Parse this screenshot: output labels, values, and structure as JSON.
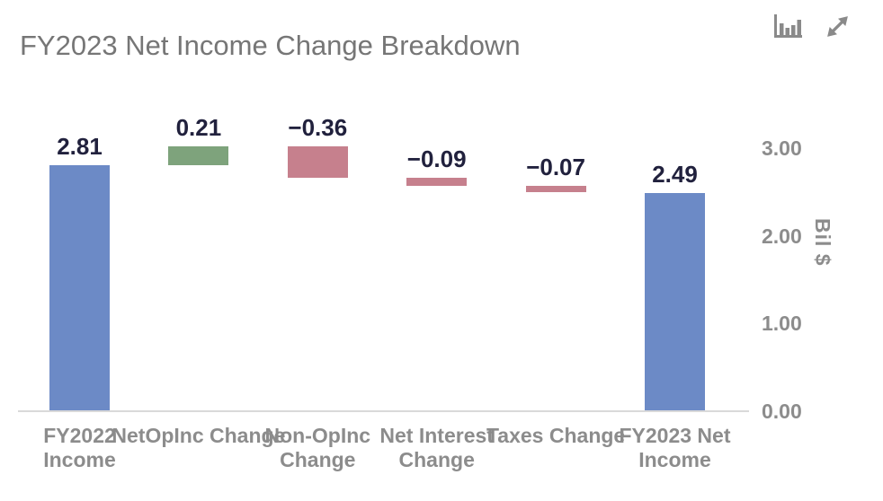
{
  "header": {
    "title": "FY2023 Net Income Change Breakdown"
  },
  "toolbar": {
    "chart_type_icon": "bar-chart-icon",
    "expand_icon": "expand-arrows-icon"
  },
  "chart_data": {
    "type": "waterfall",
    "title": "FY2023 Net Income Change Breakdown",
    "categories": [
      "FY2022 Income",
      "NetOpInc Change",
      "Non-OpInc Change",
      "Net Interest Change",
      "Taxes Change",
      "FY2023 Net Income"
    ],
    "category_display": [
      "FY2022\nIncome",
      "NetOpInc Change",
      "Non-OpInc\nChange",
      "Net Interest\nChange",
      "Taxes Change",
      "FY2023 Net\nIncome"
    ],
    "values": [
      2.81,
      0.21,
      -0.36,
      -0.09,
      -0.07,
      2.49
    ],
    "bar_kinds": [
      "total",
      "delta",
      "delta",
      "delta",
      "delta",
      "total"
    ],
    "data_labels": [
      "2.81",
      "0.21",
      "−0.36",
      "−0.09",
      "−0.07",
      "2.49"
    ],
    "ylabel": "Bil $",
    "yticks": [
      {
        "value": 0,
        "label": "0.00"
      },
      {
        "value": 1,
        "label": "1.00"
      },
      {
        "value": 2,
        "label": "2.00"
      },
      {
        "value": 3,
        "label": "3.00"
      }
    ],
    "ylim": [
      0,
      3.3
    ],
    "grid": "off",
    "legend": "off",
    "colors": {
      "total": "#6c8ac6",
      "increase": "#7ea37c",
      "decrease": "#c6808d",
      "value_label": "#21213d",
      "axis_text": "#8c8c8c",
      "title_text": "#767676",
      "axis_line": "#d9d9d9",
      "icon": "#8a8a8a"
    }
  }
}
